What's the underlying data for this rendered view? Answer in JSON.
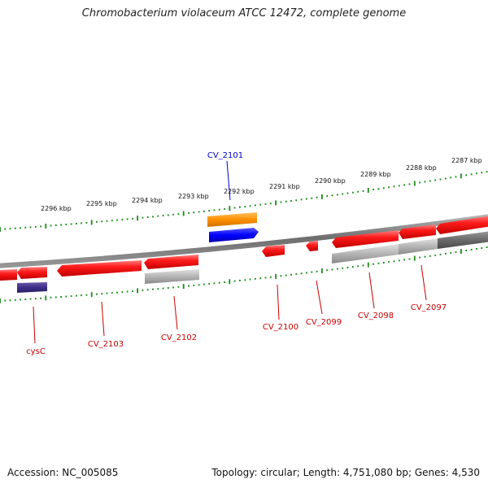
{
  "title": "Chromobacterium violaceum ATCC 12472, complete genome",
  "footer": {
    "accession": "Accession: NC_005085",
    "summary": "Topology: circular; Length: 4,751,080 bp; Genes: 4,530"
  },
  "colors": {
    "forward_gene": "#ff0000",
    "reverse_gene": "#ff0000",
    "pseudo_gene": "#b0b0b0",
    "highlight_orange": "#ff8c00",
    "highlight_blue": "#0000ff",
    "cysC_gene": "#3d2e8a",
    "scale_ticks": "#1a8c1a",
    "label_red": "#cc0000",
    "label_blue": "#0000cc"
  },
  "kbp_labels": [
    "2296 kbp",
    "2295 kbp",
    "2294 kbp",
    "2293 kbp",
    "2292 kbp",
    "2291 kbp",
    "2290 kbp",
    "2289 kbp",
    "2288 kbp",
    "2287 kbp"
  ],
  "gene_labels": [
    "CV_2101",
    "cysC",
    "CV_2103",
    "CV_2102",
    "CV_2100",
    "CV_2099",
    "CV_2098",
    "CV_2097"
  ]
}
